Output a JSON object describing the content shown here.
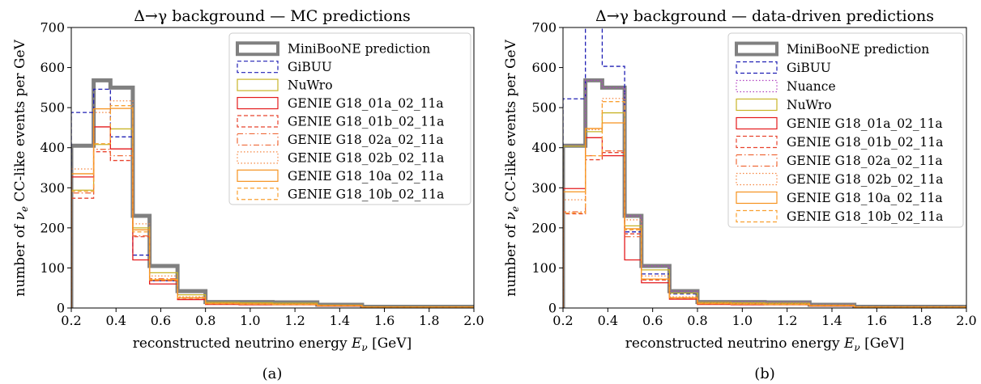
{
  "chart_data": [
    {
      "type": "histogram-step",
      "title": "Δ→γ background — MC predictions",
      "caption": "(a)",
      "xlabel": "reconstructed neutrino energy E_ν [GeV]",
      "ylabel": "number of ν_e CC-like events per GeV",
      "xlim": [
        0.2,
        2.0
      ],
      "ylim": [
        0,
        700
      ],
      "xticks": [
        "0.2",
        "0.4",
        "0.6",
        "0.8",
        "1.0",
        "1.2",
        "1.4",
        "1.6",
        "1.8",
        "2.0"
      ],
      "yticks": [
        "0",
        "100",
        "200",
        "300",
        "400",
        "500",
        "600",
        "700"
      ],
      "legend_position": "top-right",
      "bin_edges": [
        0.2,
        0.3,
        0.375,
        0.475,
        0.55,
        0.675,
        0.8,
        0.95,
        1.1,
        1.3,
        1.5,
        3.0
      ],
      "series": [
        {
          "name": "MiniBooNE prediction",
          "color": "#808080",
          "style": "solid-thick",
          "values": [
            405,
            568,
            550,
            230,
            105,
            42,
            15,
            15,
            14,
            8,
            3
          ]
        },
        {
          "name": "GiBUU",
          "color": "#1f1fb4",
          "style": "dashed",
          "values": [
            488,
            546,
            427,
            132,
            68,
            25,
            11,
            10,
            10,
            6,
            2
          ]
        },
        {
          "name": "NuWro",
          "color": "#c8b428",
          "style": "solid",
          "values": [
            294,
            408,
            447,
            200,
            88,
            33,
            14,
            13,
            12,
            7,
            3
          ]
        },
        {
          "name": "GENIE G18_01a_02_11a",
          "color": "#e41a1c",
          "style": "solid",
          "values": [
            327,
            452,
            397,
            120,
            60,
            21,
            9,
            8,
            8,
            5,
            2
          ]
        },
        {
          "name": "GENIE G18_01b_02_11a",
          "color": "#e8432e",
          "style": "dashed",
          "values": [
            274,
            390,
            368,
            178,
            68,
            24,
            10,
            9,
            9,
            5,
            2
          ]
        },
        {
          "name": "GENIE G18_02a_02_11a",
          "color": "#ef6a3a",
          "style": "dashdot",
          "values": [
            287,
            396,
            380,
            180,
            73,
            26,
            11,
            10,
            9,
            6,
            2
          ]
        },
        {
          "name": "GENIE G18_02b_02_11a",
          "color": "#f58742",
          "style": "dotted",
          "values": [
            347,
            488,
            517,
            210,
            80,
            28,
            12,
            11,
            10,
            6,
            2
          ]
        },
        {
          "name": "GENIE G18_10a_02_11a",
          "color": "#f6921e",
          "style": "solid",
          "values": [
            335,
            497,
            498,
            195,
            70,
            25,
            11,
            10,
            9,
            6,
            2
          ]
        },
        {
          "name": "GENIE G18_10b_02_11a",
          "color": "#f9a030",
          "style": "dashed",
          "values": [
            291,
            410,
            505,
            190,
            71,
            26,
            11,
            10,
            9,
            6,
            2
          ]
        }
      ]
    },
    {
      "type": "histogram-step",
      "title": "Δ→γ background — data-driven predictions",
      "caption": "(b)",
      "xlabel": "reconstructed neutrino energy E_ν [GeV]",
      "ylabel": "number of ν_e CC-like events per GeV",
      "xlim": [
        0.2,
        2.0
      ],
      "ylim": [
        0,
        700
      ],
      "xticks": [
        "0.2",
        "0.4",
        "0.6",
        "0.8",
        "1.0",
        "1.2",
        "1.4",
        "1.6",
        "1.8",
        "2.0"
      ],
      "yticks": [
        "0",
        "100",
        "200",
        "300",
        "400",
        "500",
        "600",
        "700"
      ],
      "legend_position": "top-right",
      "bin_edges": [
        0.2,
        0.3,
        0.375,
        0.475,
        0.55,
        0.675,
        0.8,
        0.95,
        1.1,
        1.3,
        1.5,
        3.0
      ],
      "series": [
        {
          "name": "MiniBooNE prediction",
          "color": "#808080",
          "style": "solid-thick",
          "values": [
            405,
            568,
            550,
            230,
            105,
            42,
            15,
            15,
            14,
            8,
            3
          ]
        },
        {
          "name": "GiBUU",
          "color": "#1f1fb4",
          "style": "dashed",
          "values": [
            522,
            800,
            603,
            190,
            85,
            35,
            13,
            12,
            11,
            7,
            3
          ]
        },
        {
          "name": "Nuance",
          "color": "#b040c0",
          "style": "dotted",
          "values": [
            405,
            568,
            550,
            230,
            105,
            42,
            15,
            15,
            14,
            8,
            3
          ]
        },
        {
          "name": "NuWro",
          "color": "#c8b428",
          "style": "solid",
          "values": [
            404,
            440,
            487,
            205,
            95,
            37,
            14,
            13,
            12,
            7,
            3
          ]
        },
        {
          "name": "GENIE G18_01a_02_11a",
          "color": "#e41a1c",
          "style": "solid",
          "values": [
            298,
            425,
            380,
            120,
            63,
            22,
            9,
            8,
            8,
            5,
            2
          ]
        },
        {
          "name": "GENIE G18_01b_02_11a",
          "color": "#e8432e",
          "style": "dashed",
          "values": [
            235,
            370,
            388,
            185,
            70,
            25,
            10,
            9,
            9,
            5,
            2
          ]
        },
        {
          "name": "GENIE G18_02a_02_11a",
          "color": "#ef6a3a",
          "style": "dashdot",
          "values": [
            240,
            380,
            392,
            178,
            72,
            26,
            11,
            10,
            9,
            6,
            2
          ]
        },
        {
          "name": "GENIE G18_02b_02_11a",
          "color": "#f58742",
          "style": "dotted",
          "values": [
            270,
            445,
            523,
            220,
            80,
            28,
            12,
            11,
            10,
            6,
            2
          ]
        },
        {
          "name": "GENIE G18_10a_02_11a",
          "color": "#f6921e",
          "style": "solid",
          "values": [
            290,
            448,
            462,
            198,
            72,
            25,
            11,
            10,
            9,
            6,
            2
          ]
        },
        {
          "name": "GENIE G18_10b_02_11a",
          "color": "#f9a030",
          "style": "dashed",
          "values": [
            237,
            380,
            515,
            195,
            72,
            26,
            11,
            10,
            9,
            6,
            2
          ]
        }
      ]
    }
  ]
}
